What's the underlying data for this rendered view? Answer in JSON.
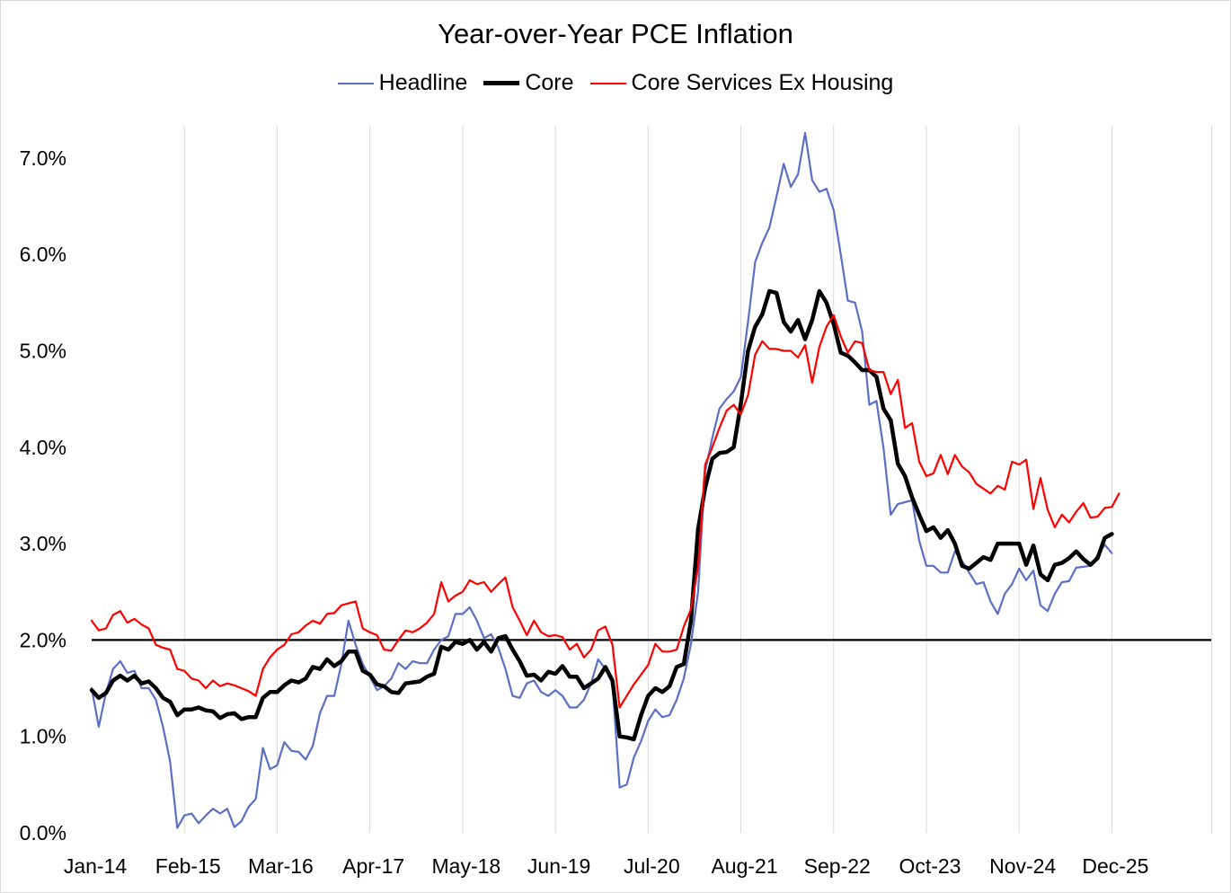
{
  "chart_data": {
    "type": "line",
    "title": "Year-over-Year PCE Inflation",
    "xlabel": "",
    "ylabel": "",
    "ylim": [
      0,
      7.5
    ],
    "y_ticks": [
      "0.0%",
      "1.0%",
      "2.0%",
      "3.0%",
      "4.0%",
      "5.0%",
      "6.0%",
      "7.0%"
    ],
    "y_tick_values": [
      0,
      1,
      2,
      3,
      4,
      5,
      6,
      7
    ],
    "x_tick_labels": [
      "Jan-14",
      "Feb-15",
      "Mar-16",
      "Apr-17",
      "May-18",
      "Jun-19",
      "Jul-20",
      "Aug-21",
      "Sep-22",
      "Oct-23",
      "Nov-24",
      "Dec-25"
    ],
    "x_tick_month_index": [
      0,
      13,
      26,
      39,
      52,
      65,
      78,
      91,
      104,
      117,
      130,
      143
    ],
    "x_range_months": [
      0,
      157
    ],
    "x_start": "Jan-14",
    "reference_line": 2.0,
    "legend_position": "top-center",
    "series": [
      {
        "name": "Headline",
        "color": "#5b6fc6",
        "width": 2.2,
        "values": [
          1.5,
          1.1,
          1.45,
          1.7,
          1.78,
          1.66,
          1.68,
          1.5,
          1.5,
          1.38,
          1.1,
          0.74,
          0.05,
          0.18,
          0.2,
          0.1,
          0.18,
          0.25,
          0.2,
          0.25,
          0.06,
          0.12,
          0.27,
          0.35,
          0.88,
          0.66,
          0.7,
          0.94,
          0.85,
          0.84,
          0.76,
          0.9,
          1.24,
          1.42,
          1.42,
          1.75,
          2.2,
          1.95,
          1.75,
          1.62,
          1.48,
          1.52,
          1.6,
          1.76,
          1.7,
          1.78,
          1.76,
          1.76,
          1.9,
          2.0,
          2.04,
          2.27,
          2.27,
          2.34,
          2.2,
          2.02,
          2.06,
          1.92,
          1.7,
          1.42,
          1.4,
          1.55,
          1.58,
          1.46,
          1.42,
          1.48,
          1.42,
          1.3,
          1.3,
          1.38,
          1.55,
          1.8,
          1.7,
          1.55,
          0.47,
          0.5,
          0.78,
          0.95,
          1.16,
          1.28,
          1.2,
          1.22,
          1.38,
          1.6,
          1.96,
          2.5,
          3.75,
          4.1,
          4.4,
          4.5,
          4.58,
          4.73,
          5.3,
          5.92,
          6.12,
          6.28,
          6.6,
          6.94,
          6.7,
          6.83,
          7.26,
          6.77,
          6.65,
          6.68,
          6.46,
          6.0,
          5.52,
          5.5,
          5.2,
          4.44,
          4.48,
          3.99,
          3.3,
          3.41,
          3.43,
          3.45,
          3.03,
          2.77,
          2.77,
          2.7,
          2.7,
          2.92,
          2.82,
          2.7,
          2.58,
          2.6,
          2.4,
          2.27,
          2.48,
          2.58,
          2.74,
          2.62,
          2.72,
          2.36,
          2.3,
          2.48,
          2.6,
          2.61,
          2.75,
          2.76,
          2.77,
          2.88,
          2.99,
          2.9
        ],
        "x_offset": 0
      },
      {
        "name": "Core",
        "color": "#000000",
        "width": 4.5,
        "values": [
          1.48,
          1.4,
          1.45,
          1.58,
          1.63,
          1.58,
          1.63,
          1.55,
          1.57,
          1.5,
          1.4,
          1.36,
          1.22,
          1.28,
          1.28,
          1.3,
          1.27,
          1.26,
          1.19,
          1.23,
          1.24,
          1.18,
          1.2,
          1.2,
          1.4,
          1.46,
          1.46,
          1.53,
          1.58,
          1.56,
          1.6,
          1.72,
          1.7,
          1.8,
          1.73,
          1.78,
          1.88,
          1.88,
          1.68,
          1.64,
          1.54,
          1.52,
          1.46,
          1.45,
          1.55,
          1.56,
          1.57,
          1.62,
          1.65,
          1.93,
          1.9,
          1.98,
          1.96,
          2.0,
          1.9,
          1.98,
          1.88,
          2.02,
          2.04,
          1.9,
          1.78,
          1.63,
          1.64,
          1.58,
          1.67,
          1.65,
          1.73,
          1.62,
          1.62,
          1.5,
          1.55,
          1.6,
          1.72,
          1.58,
          1.0,
          0.99,
          0.97,
          1.22,
          1.42,
          1.5,
          1.46,
          1.52,
          1.72,
          1.75,
          2.2,
          3.15,
          3.58,
          3.88,
          3.94,
          3.95,
          4.0,
          4.45,
          5.0,
          5.25,
          5.38,
          5.62,
          5.6,
          5.3,
          5.2,
          5.32,
          5.12,
          5.32,
          5.62,
          5.5,
          5.28,
          4.98,
          4.95,
          4.88,
          4.8,
          4.8,
          4.73,
          4.4,
          4.28,
          3.83,
          3.7,
          3.48,
          3.3,
          3.13,
          3.17,
          3.06,
          3.14,
          3.0,
          2.77,
          2.74,
          2.8,
          2.86,
          2.83,
          3.0,
          3.0,
          3.0,
          3.0,
          2.78,
          2.98,
          2.68,
          2.62,
          2.78,
          2.8,
          2.85,
          2.92,
          2.84,
          2.78,
          2.85,
          3.06,
          3.1
        ],
        "x_offset": 0
      },
      {
        "name": "Core Services Ex Housing",
        "color": "#ff0000",
        "width": 2.2,
        "values": [
          2.2,
          2.1,
          2.12,
          2.26,
          2.3,
          2.18,
          2.22,
          2.16,
          2.12,
          1.95,
          1.92,
          1.9,
          1.7,
          1.68,
          1.6,
          1.58,
          1.5,
          1.58,
          1.52,
          1.55,
          1.53,
          1.5,
          1.47,
          1.42,
          1.7,
          1.82,
          1.9,
          1.95,
          2.06,
          2.08,
          2.15,
          2.2,
          2.17,
          2.27,
          2.28,
          2.36,
          2.38,
          2.4,
          2.12,
          2.08,
          2.05,
          1.9,
          1.89,
          2.0,
          2.1,
          2.08,
          2.12,
          2.18,
          2.27,
          2.6,
          2.4,
          2.46,
          2.5,
          2.62,
          2.58,
          2.6,
          2.5,
          2.58,
          2.65,
          2.34,
          2.2,
          2.05,
          2.2,
          2.08,
          2.04,
          2.05,
          2.03,
          1.9,
          1.96,
          1.82,
          1.9,
          2.1,
          2.14,
          1.95,
          1.3,
          1.42,
          1.54,
          1.64,
          1.74,
          1.96,
          1.88,
          1.88,
          1.9,
          2.14,
          2.32,
          2.76,
          3.82,
          4.0,
          4.2,
          4.38,
          4.44,
          4.34,
          4.54,
          4.96,
          5.1,
          5.02,
          5.02,
          5.0,
          5.0,
          4.93,
          5.06,
          4.67,
          5.04,
          5.25,
          5.37,
          5.15,
          4.98,
          5.1,
          5.08,
          4.8,
          4.78,
          4.78,
          4.55,
          4.7,
          4.2,
          4.25,
          3.85,
          3.7,
          3.73,
          3.92,
          3.72,
          3.92,
          3.8,
          3.74,
          3.62,
          3.57,
          3.52,
          3.6,
          3.56,
          3.85,
          3.82,
          3.87,
          3.36,
          3.68,
          3.35,
          3.17,
          3.3,
          3.22,
          3.33,
          3.42,
          3.27,
          3.28,
          3.37,
          3.38,
          3.52
        ],
        "x_offset": 0
      }
    ]
  }
}
